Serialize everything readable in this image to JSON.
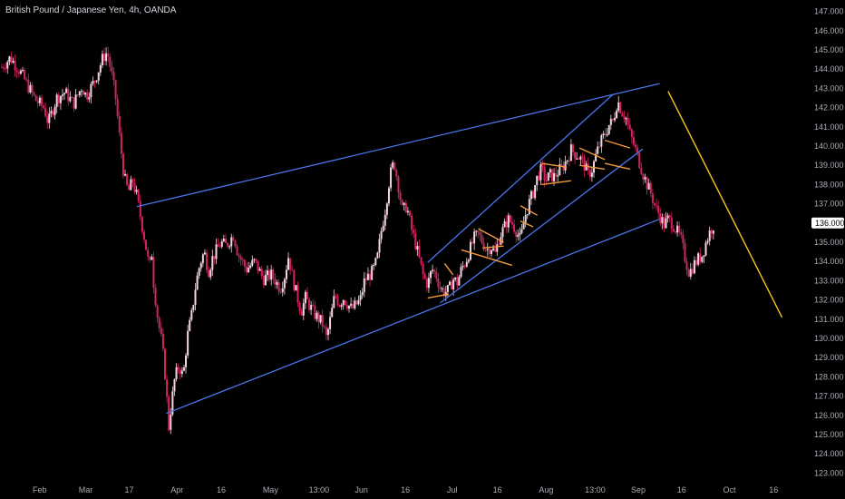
{
  "header": {
    "symbol_title": "British Pound / Japanese Yen, 4h, OANDA"
  },
  "chart_data": {
    "type": "candlestick",
    "title": "British Pound / Japanese Yen, 4h, OANDA",
    "ylim": [
      122.5,
      147.5
    ],
    "y_ticks": [
      "123.000",
      "124.000",
      "125.000",
      "126.000",
      "127.000",
      "128.000",
      "129.000",
      "130.000",
      "131.000",
      "132.000",
      "133.000",
      "134.000",
      "135.000",
      "136.000",
      "137.000",
      "138.000",
      "139.000",
      "140.000",
      "141.000",
      "142.000",
      "143.000",
      "144.000",
      "145.000",
      "146.000",
      "147.000"
    ],
    "x_ticks": [
      "Feb",
      "Mar",
      "17",
      "Apr",
      "16",
      "May",
      "13:00",
      "Jun",
      "16",
      "Jul",
      "16",
      "Aug",
      "13:00",
      "Sep",
      "16",
      "Oct",
      "16"
    ],
    "current_price": "136.000",
    "colors": {
      "bull": "#f3d6df",
      "bear": "#d4245b",
      "trendline": "#4a76ea",
      "flag": "#f39a3a",
      "projection": "#f5c518",
      "axis_text": "#a8acb4",
      "background": "#000000"
    },
    "price_path": [
      [
        0,
        144.1
      ],
      [
        2,
        144.6
      ],
      [
        4,
        144.0
      ],
      [
        6,
        143.2
      ],
      [
        8,
        142.4
      ],
      [
        10,
        142.0
      ],
      [
        11,
        141.2
      ],
      [
        13,
        142.5
      ],
      [
        15,
        142.8
      ],
      [
        17,
        142.2
      ],
      [
        19,
        143.1
      ],
      [
        20,
        142.6
      ],
      [
        22,
        143.4
      ],
      [
        24,
        144.6
      ],
      [
        25,
        144.9
      ],
      [
        26,
        143.8
      ],
      [
        27,
        142.5
      ],
      [
        28,
        140.3
      ],
      [
        29,
        138.4
      ],
      [
        30,
        137.6
      ],
      [
        31,
        138.2
      ],
      [
        32,
        137.4
      ],
      [
        33,
        136.2
      ],
      [
        34,
        135.0
      ],
      [
        35,
        133.6
      ],
      [
        35.5,
        134.6
      ],
      [
        36,
        132.9
      ],
      [
        37,
        131.0
      ],
      [
        38,
        129.7
      ],
      [
        39,
        127.5
      ],
      [
        39.5,
        125.2
      ],
      [
        40,
        126.2
      ],
      [
        41,
        127.9
      ],
      [
        42,
        128.6
      ],
      [
        43,
        128.0
      ],
      [
        44,
        130.1
      ],
      [
        45,
        131.2
      ],
      [
        46,
        132.8
      ],
      [
        47,
        133.9
      ],
      [
        48,
        134.5
      ],
      [
        49,
        133.5
      ],
      [
        50,
        134.2
      ],
      [
        51,
        134.6
      ],
      [
        52,
        135.0
      ],
      [
        53,
        134.8
      ],
      [
        55,
        135.4
      ],
      [
        56,
        134.4
      ],
      [
        58,
        133.6
      ],
      [
        60,
        134.0
      ],
      [
        62,
        133.1
      ],
      [
        64,
        133.3
      ],
      [
        66,
        132.6
      ],
      [
        67,
        133.2
      ],
      [
        68,
        134.3
      ],
      [
        69,
        133.1
      ],
      [
        70,
        132.2
      ],
      [
        71,
        131.4
      ],
      [
        72,
        132.1
      ],
      [
        74,
        131.3
      ],
      [
        76,
        130.8
      ],
      [
        77,
        130.0
      ],
      [
        78,
        131.1
      ],
      [
        79,
        132.3
      ],
      [
        80,
        131.8
      ],
      [
        81,
        132.1
      ],
      [
        83,
        131.5
      ],
      [
        85,
        132.0
      ],
      [
        86,
        133.0
      ],
      [
        88,
        133.5
      ],
      [
        89,
        134.1
      ],
      [
        90,
        135.6
      ],
      [
        91,
        136.8
      ],
      [
        92,
        138.4
      ],
      [
        93,
        139.2
      ],
      [
        94,
        138.0
      ],
      [
        95,
        136.6
      ],
      [
        96,
        136.9
      ],
      [
        97,
        135.8
      ],
      [
        98,
        135.0
      ],
      [
        99,
        134.1
      ],
      [
        100,
        133.2
      ],
      [
        101,
        132.8
      ],
      [
        102,
        133.6
      ],
      [
        103,
        133.3
      ],
      [
        104,
        132.6
      ],
      [
        105,
        132.4
      ],
      [
        106,
        132.5
      ],
      [
        107,
        133.1
      ],
      [
        108,
        132.9
      ],
      [
        109,
        133.6
      ],
      [
        110,
        134.0
      ],
      [
        111,
        134.6
      ],
      [
        112,
        135.2
      ],
      [
        113,
        135.4
      ],
      [
        114,
        135.0
      ],
      [
        115,
        134.6
      ],
      [
        116,
        134.8
      ],
      [
        117,
        134.4
      ],
      [
        118,
        135.3
      ],
      [
        119,
        135.7
      ],
      [
        120,
        136.2
      ],
      [
        121,
        136.0
      ],
      [
        122,
        135.6
      ],
      [
        123,
        135.1
      ],
      [
        124,
        136.3
      ],
      [
        125,
        137.0
      ],
      [
        126,
        137.6
      ],
      [
        127,
        138.4
      ],
      [
        128,
        138.8
      ],
      [
        129,
        138.2
      ],
      [
        130,
        138.5
      ],
      [
        131,
        138.4
      ],
      [
        132,
        138.7
      ],
      [
        133,
        138.9
      ],
      [
        134,
        139.3
      ],
      [
        135,
        139.8
      ],
      [
        136,
        139.6
      ],
      [
        137,
        139.4
      ],
      [
        138,
        139.1
      ],
      [
        139,
        138.5
      ],
      [
        140,
        138.8
      ],
      [
        141,
        139.6
      ],
      [
        142,
        140.2
      ],
      [
        143,
        140.6
      ],
      [
        144,
        141.1
      ],
      [
        145,
        141.3
      ],
      [
        146,
        142.4
      ],
      [
        147,
        141.8
      ],
      [
        148,
        141.5
      ],
      [
        149,
        140.6
      ],
      [
        150,
        140.0
      ],
      [
        151,
        139.3
      ],
      [
        152,
        138.6
      ],
      [
        153,
        138.0
      ],
      [
        154,
        137.5
      ],
      [
        155,
        136.8
      ],
      [
        156,
        136.4
      ],
      [
        157,
        135.9
      ],
      [
        158,
        136.2
      ],
      [
        159,
        136.0
      ],
      [
        160,
        135.6
      ],
      [
        161,
        135.2
      ],
      [
        162,
        134.2
      ],
      [
        163,
        133.4
      ],
      [
        164,
        133.8
      ],
      [
        165,
        134.1
      ],
      [
        166,
        134.3
      ],
      [
        167,
        135.0
      ],
      [
        168,
        135.6
      ],
      [
        169,
        136.0
      ]
    ],
    "annotations": {
      "channel_upper": [
        [
          32,
          136.85
        ],
        [
          156,
          143.25
        ]
      ],
      "channel_lower": [
        [
          39,
          126.1
        ],
        [
          156,
          136.2
        ]
      ],
      "inner_channel_upper": [
        [
          101,
          133.95
        ],
        [
          145,
          142.7
        ]
      ],
      "inner_channel_lower": [
        [
          104,
          131.85
        ],
        [
          152,
          139.85
        ]
      ],
      "flags": [
        [
          [
            101,
            132.1
          ],
          [
            106,
            132.3
          ]
        ],
        [
          [
            105,
            133.9
          ],
          [
            107,
            133.3
          ]
        ],
        [
          [
            109,
            134.6
          ],
          [
            121,
            133.8
          ]
        ],
        [
          [
            113,
            135.7
          ],
          [
            119,
            135.0
          ]
        ],
        [
          [
            114,
            134.7
          ],
          [
            119,
            134.8
          ]
        ],
        [
          [
            123,
            136.9
          ],
          [
            127,
            136.4
          ]
        ],
        [
          [
            123,
            136.1
          ],
          [
            126,
            135.8
          ]
        ],
        [
          [
            128,
            139.1
          ],
          [
            134,
            138.9
          ]
        ],
        [
          [
            128,
            138.0
          ],
          [
            135,
            138.2
          ]
        ],
        [
          [
            137,
            139.9
          ],
          [
            143,
            139.3
          ]
        ],
        [
          [
            137,
            139.0
          ],
          [
            143,
            138.8
          ]
        ],
        [
          [
            143,
            140.3
          ],
          [
            149,
            139.9
          ]
        ],
        [
          [
            143,
            139.1
          ],
          [
            149,
            138.8
          ]
        ]
      ],
      "projection": [
        [
          158,
          142.85
        ],
        [
          185,
          131.1
        ]
      ]
    },
    "x_domain": [
      0,
      192
    ]
  }
}
